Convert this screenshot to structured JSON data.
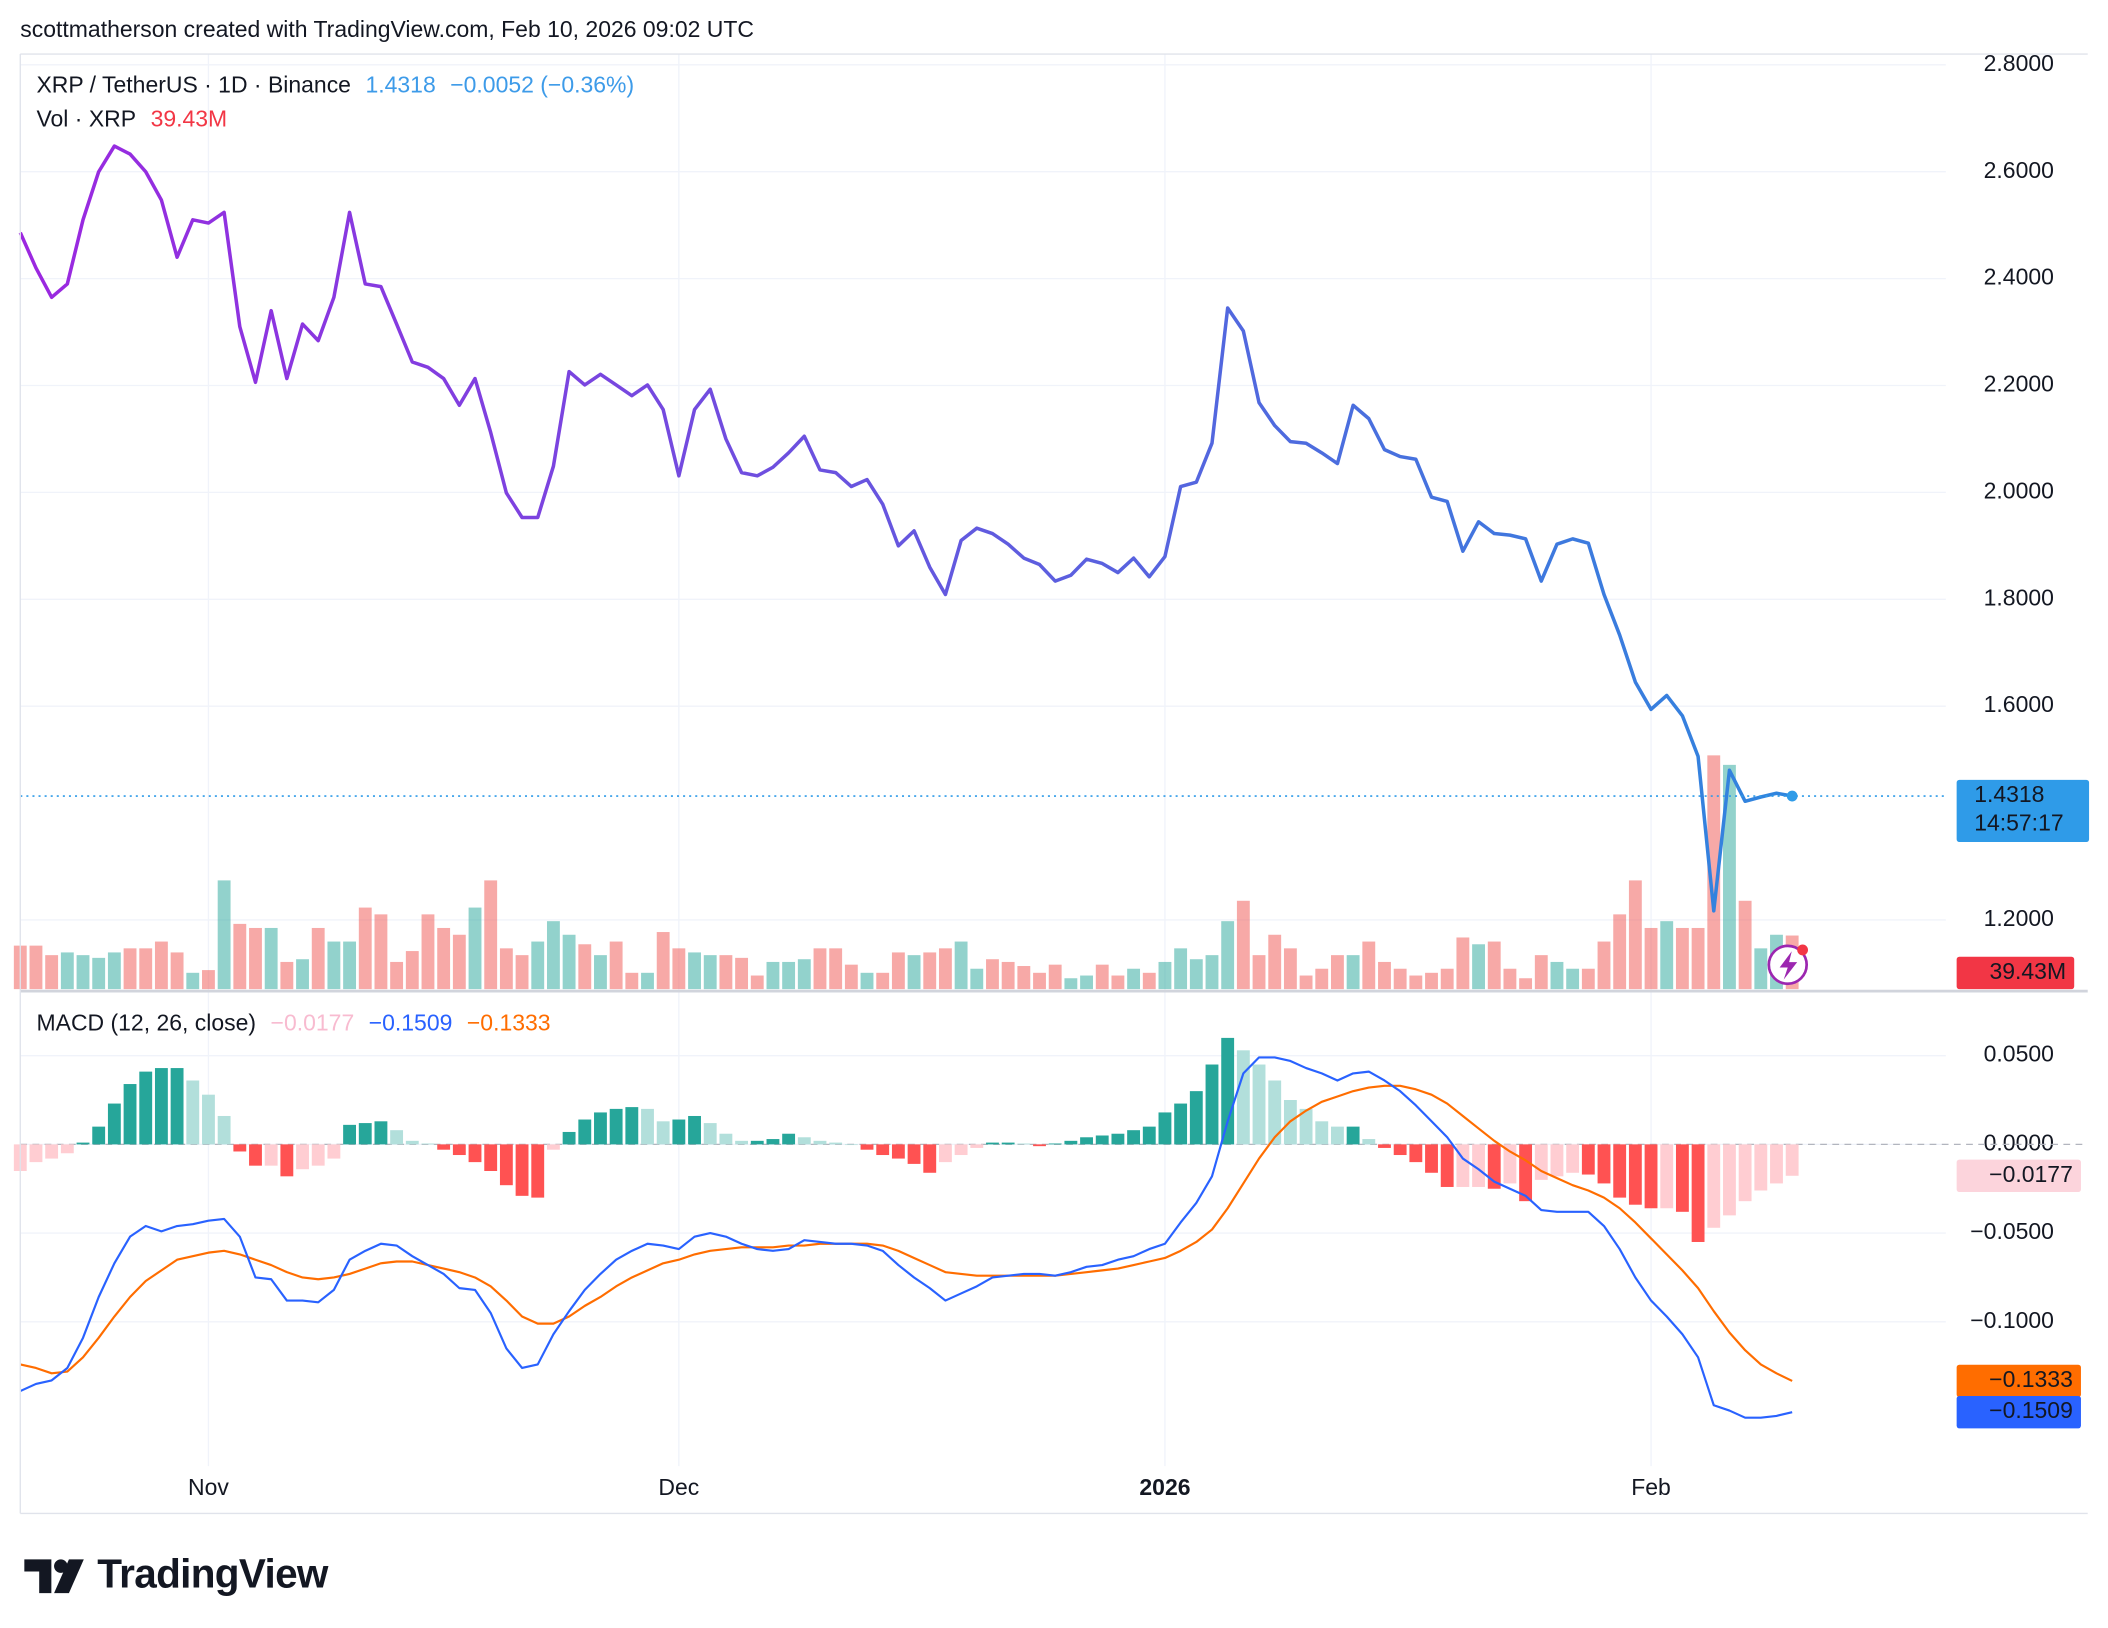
{
  "caption": "scottmatherson created with TradingView.com, Feb 10, 2026 09:02 UTC",
  "brand": "TradingView",
  "chart_data": [
    {
      "type": "line",
      "legend": {
        "symbol": "XRP / TetherUS · 1D · Binance",
        "price": "1.4318",
        "change": "−0.0052 (−0.36%)"
      },
      "countdown": "14:57:17",
      "gradient": [
        "#9c27e0",
        "#2f86de"
      ],
      "last_color": "#2f9be8",
      "values": [
        2.486,
        2.42,
        2.365,
        2.39,
        2.51,
        2.6,
        2.648,
        2.633,
        2.6,
        2.547,
        2.44,
        2.51,
        2.504,
        2.524,
        2.31,
        2.206,
        2.34,
        2.213,
        2.315,
        2.284,
        2.365,
        2.524,
        2.39,
        2.385,
        2.315,
        2.244,
        2.234,
        2.213,
        2.163,
        2.213,
        2.112,
        1.999,
        1.953,
        1.953,
        2.049,
        2.226,
        2.201,
        2.221,
        2.201,
        2.181,
        2.201,
        2.155,
        2.031,
        2.155,
        2.193,
        2.1,
        2.037,
        2.031,
        2.047,
        2.074,
        2.105,
        2.042,
        2.037,
        2.011,
        2.024,
        1.978,
        1.9,
        1.928,
        1.86,
        1.809,
        1.91,
        1.933,
        1.923,
        1.903,
        1.877,
        1.865,
        1.834,
        1.845,
        1.875,
        1.867,
        1.85,
        1.877,
        1.842,
        1.88,
        2.011,
        2.019,
        2.092,
        2.345,
        2.302,
        2.168,
        2.125,
        2.095,
        2.092,
        2.074,
        2.054,
        2.163,
        2.138,
        2.08,
        2.067,
        2.062,
        1.991,
        1.983,
        1.89,
        1.945,
        1.923,
        1.92,
        1.913,
        1.834,
        1.903,
        1.913,
        1.905,
        1.809,
        1.733,
        1.645,
        1.594,
        1.62,
        1.582,
        1.506,
        1.217,
        1.48,
        1.422,
        1.43,
        1.437,
        1.4318
      ],
      "ylim": [
        1.0705,
        2.8202
      ],
      "yticks": [
        {
          "value": 2.8,
          "label": "2.8000"
        },
        {
          "value": 2.6,
          "label": "2.6000"
        },
        {
          "value": 2.4,
          "label": "2.4000"
        },
        {
          "value": 2.2,
          "label": "2.2000"
        },
        {
          "value": 2.0,
          "label": "2.0000"
        },
        {
          "value": 1.8,
          "label": "1.8000"
        },
        {
          "value": 1.6,
          "label": "1.6000"
        },
        {
          "value": 1.2,
          "label": "1.2000"
        }
      ],
      "grid": true
    },
    {
      "type": "bar",
      "legend": "Vol · XRP",
      "last_label": "39.43M",
      "up_color": "rgba(38,166,154,0.5)",
      "down_color": "rgba(239,83,80,0.5)",
      "label_color": "#f23645",
      "values": [
        32,
        32,
        25,
        27,
        25,
        23,
        27,
        30,
        30,
        35,
        27,
        12,
        14,
        80,
        48,
        45,
        45,
        20,
        22,
        45,
        35,
        35,
        60,
        55,
        20,
        28,
        55,
        45,
        40,
        60,
        80,
        30,
        25,
        35,
        50,
        40,
        33,
        25,
        35,
        12,
        12,
        42,
        30,
        27,
        25,
        25,
        23,
        10,
        20,
        20,
        22,
        30,
        30,
        18,
        12,
        12,
        27,
        25,
        27,
        30,
        35,
        15,
        22,
        20,
        17,
        12,
        18,
        8,
        10,
        18,
        10,
        15,
        12,
        20,
        30,
        22,
        25,
        50,
        65,
        25,
        40,
        30,
        10,
        15,
        25,
        25,
        35,
        20,
        15,
        10,
        12,
        15,
        38,
        33,
        35,
        15,
        8,
        25,
        20,
        15,
        15,
        35,
        55,
        80,
        45,
        50,
        45,
        45,
        172,
        165,
        65,
        30,
        40,
        39.43
      ]
    },
    {
      "type": "macd",
      "legend": "MACD (12, 26, close)",
      "histogram": {
        "colors": [
          "#26a69a",
          "#b2dfdb",
          "#ff5252",
          "#ffcdd2"
        ],
        "value_label": "−0.0177",
        "label_color": "#f8bbd0",
        "values": [
          -0.015,
          -0.01,
          -0.008,
          -0.005,
          0.001,
          0.01,
          0.023,
          0.034,
          0.041,
          0.043,
          0.043,
          0.036,
          0.028,
          0.016,
          -0.004,
          -0.012,
          -0.012,
          -0.018,
          -0.014,
          -0.012,
          -0.008,
          0.011,
          0.012,
          0.013,
          0.008,
          0.002,
          0.0005,
          -0.003,
          -0.006,
          -0.01,
          -0.015,
          -0.023,
          -0.029,
          -0.03,
          -0.003,
          0.007,
          0.014,
          0.018,
          0.02,
          0.021,
          0.02,
          0.013,
          0.014,
          0.016,
          0.012,
          0.006,
          0.002,
          0.002,
          0.003,
          0.006,
          0.004,
          0.002,
          0.001,
          0.0,
          -0.003,
          -0.006,
          -0.008,
          -0.011,
          -0.016,
          -0.01,
          -0.006,
          -0.002,
          0.001,
          0.001,
          0.0005,
          -0.001,
          0.0005,
          0.002,
          0.004,
          0.005,
          0.006,
          0.008,
          0.01,
          0.018,
          0.023,
          0.03,
          0.045,
          0.06,
          0.053,
          0.045,
          0.036,
          0.025,
          0.02,
          0.013,
          0.01,
          0.01,
          0.003,
          -0.002,
          -0.006,
          -0.01,
          -0.016,
          -0.024,
          -0.024,
          -0.024,
          -0.025,
          -0.022,
          -0.032,
          -0.02,
          -0.018,
          -0.016,
          -0.017,
          -0.022,
          -0.03,
          -0.034,
          -0.036,
          -0.036,
          -0.038,
          -0.055,
          -0.047,
          -0.04,
          -0.032,
          -0.026,
          -0.022,
          -0.0177
        ]
      },
      "macd": {
        "color": "#2962ff",
        "value_label": "−0.1509",
        "values": [
          -0.139,
          -0.135,
          -0.133,
          -0.126,
          -0.109,
          -0.086,
          -0.067,
          -0.052,
          -0.046,
          -0.049,
          -0.046,
          -0.045,
          -0.043,
          -0.042,
          -0.052,
          -0.075,
          -0.076,
          -0.088,
          -0.088,
          -0.089,
          -0.082,
          -0.065,
          -0.06,
          -0.056,
          -0.057,
          -0.063,
          -0.068,
          -0.073,
          -0.081,
          -0.082,
          -0.095,
          -0.115,
          -0.126,
          -0.124,
          -0.107,
          -0.094,
          -0.082,
          -0.073,
          -0.065,
          -0.06,
          -0.056,
          -0.057,
          -0.059,
          -0.052,
          -0.05,
          -0.052,
          -0.056,
          -0.059,
          -0.06,
          -0.059,
          -0.054,
          -0.055,
          -0.056,
          -0.056,
          -0.057,
          -0.06,
          -0.068,
          -0.075,
          -0.081,
          -0.088,
          -0.084,
          -0.08,
          -0.075,
          -0.074,
          -0.073,
          -0.073,
          -0.074,
          -0.072,
          -0.069,
          -0.068,
          -0.065,
          -0.063,
          -0.059,
          -0.056,
          -0.044,
          -0.033,
          -0.018,
          0.013,
          0.04,
          0.049,
          0.049,
          0.047,
          0.043,
          0.04,
          0.036,
          0.04,
          0.041,
          0.036,
          0.03,
          0.022,
          0.013,
          0.004,
          -0.008,
          -0.014,
          -0.021,
          -0.025,
          -0.029,
          -0.037,
          -0.038,
          -0.038,
          -0.038,
          -0.046,
          -0.059,
          -0.075,
          -0.088,
          -0.097,
          -0.107,
          -0.12,
          -0.147,
          -0.15,
          -0.154,
          -0.154,
          -0.153,
          -0.1509
        ]
      },
      "signal": {
        "color": "#ff6d00",
        "value_label": "−0.1333",
        "values": [
          -0.124,
          -0.126,
          -0.129,
          -0.128,
          -0.12,
          -0.109,
          -0.097,
          -0.086,
          -0.077,
          -0.071,
          -0.065,
          -0.063,
          -0.061,
          -0.06,
          -0.062,
          -0.065,
          -0.068,
          -0.072,
          -0.075,
          -0.076,
          -0.075,
          -0.073,
          -0.07,
          -0.067,
          -0.066,
          -0.066,
          -0.068,
          -0.07,
          -0.072,
          -0.075,
          -0.08,
          -0.088,
          -0.097,
          -0.101,
          -0.101,
          -0.097,
          -0.091,
          -0.086,
          -0.08,
          -0.075,
          -0.071,
          -0.067,
          -0.065,
          -0.062,
          -0.06,
          -0.059,
          -0.058,
          -0.058,
          -0.058,
          -0.057,
          -0.057,
          -0.056,
          -0.056,
          -0.056,
          -0.056,
          -0.057,
          -0.06,
          -0.064,
          -0.068,
          -0.072,
          -0.073,
          -0.074,
          -0.074,
          -0.074,
          -0.074,
          -0.074,
          -0.074,
          -0.073,
          -0.072,
          -0.071,
          -0.07,
          -0.068,
          -0.066,
          -0.064,
          -0.06,
          -0.055,
          -0.048,
          -0.036,
          -0.022,
          -0.008,
          0.004,
          0.013,
          0.019,
          0.024,
          0.027,
          0.03,
          0.032,
          0.033,
          0.033,
          0.031,
          0.028,
          0.023,
          0.016,
          0.009,
          0.002,
          -0.004,
          -0.009,
          -0.015,
          -0.019,
          -0.023,
          -0.026,
          -0.03,
          -0.036,
          -0.044,
          -0.053,
          -0.062,
          -0.071,
          -0.081,
          -0.094,
          -0.106,
          -0.116,
          -0.124,
          -0.129,
          -0.1333
        ]
      },
      "ylim": [
        -0.1813,
        0.0852
      ],
      "yticks": [
        {
          "value": 0.05,
          "label": "0.0500"
        },
        {
          "value": 0,
          "label": "0.0000"
        },
        {
          "value": -0.05,
          "label": "−0.0500"
        },
        {
          "value": -0.1,
          "label": "−0.1000"
        }
      ],
      "xlim": [
        0,
        122.8
      ],
      "xticks": [
        {
          "value": 12,
          "label": "Nov"
        },
        {
          "value": 42,
          "label": "Dec"
        },
        {
          "value": 73,
          "label": "2026",
          "bold": true
        },
        {
          "value": 104,
          "label": "Feb"
        }
      ],
      "grid": true
    }
  ]
}
